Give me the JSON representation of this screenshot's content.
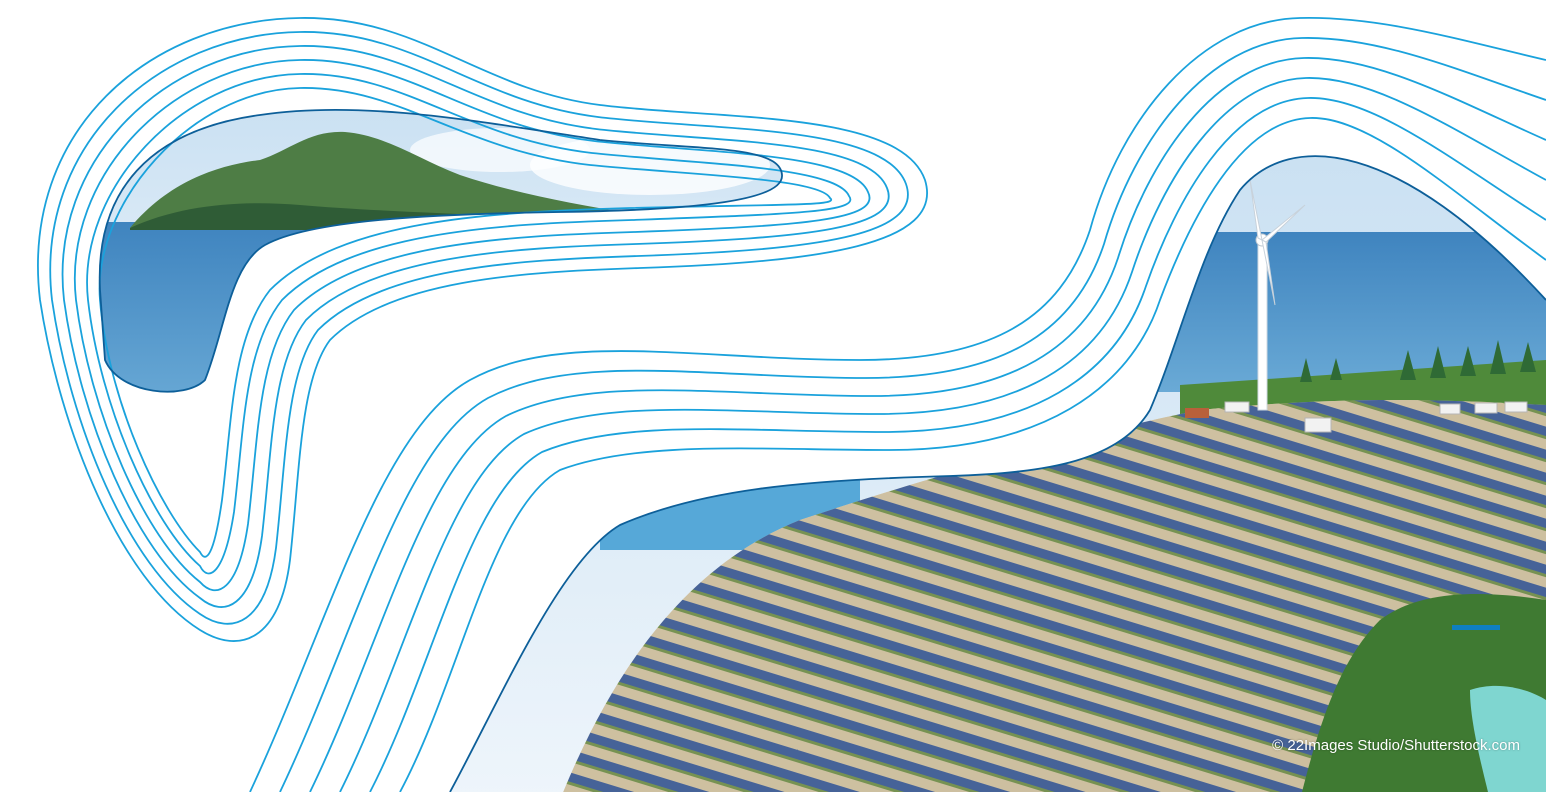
{
  "photo": {
    "credit": "© 22Images Studio/Shutterstock.com",
    "scenes": [
      "island-mountain-sea",
      "solar-farm-coast-wind-turbine"
    ]
  },
  "colors": {
    "contour_line": "#1aa2dc",
    "contour_line_inner": "#0d5f99",
    "accent_bar": "#0f7fc0",
    "sea": "#4f95c9",
    "sky": "#d9eaf6",
    "vegetation": "#5e8f3c",
    "sand": "#d9ceb6",
    "panel": "#37558f"
  }
}
